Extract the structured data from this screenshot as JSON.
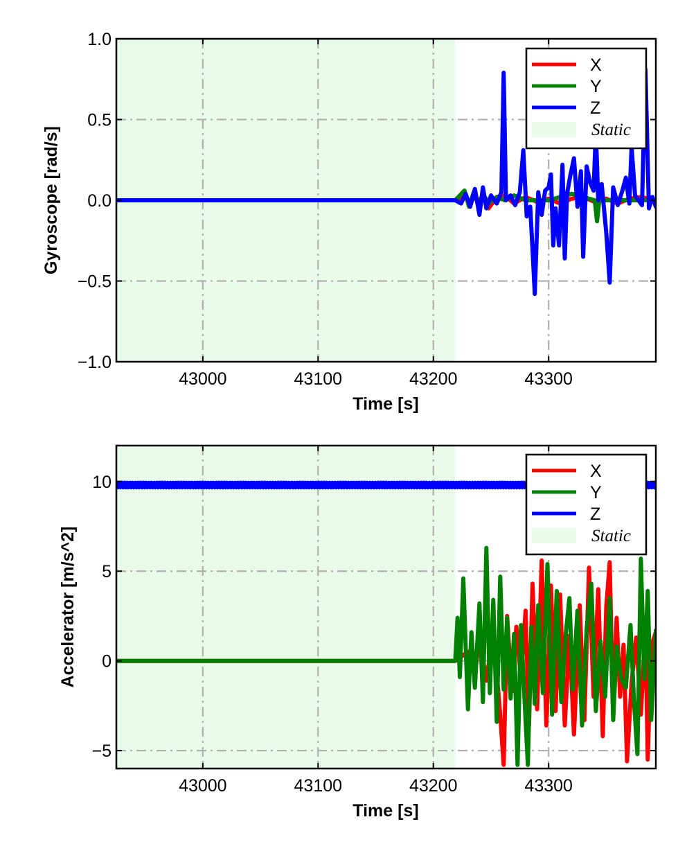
{
  "colors": {
    "x": "#ff0000",
    "y": "#008000",
    "z": "#0000ff",
    "static_fill": "#e8fbe8",
    "grid": "#b0b0b0"
  },
  "chart_data": [
    {
      "type": "line",
      "xlabel": "Time [s]",
      "ylabel": "Gyroscope [rad/s]",
      "xlim": [
        42925,
        43393
      ],
      "ylim": [
        -1.0,
        1.0
      ],
      "xticks": [
        43000,
        43100,
        43200,
        43300
      ],
      "yticks": [
        -1.0,
        -0.5,
        0.0,
        0.5,
        1.0
      ],
      "ytick_labels": [
        "−1.0",
        "−0.5",
        "0.0",
        "0.5",
        "1.0"
      ],
      "grid": true,
      "legend": "top-right",
      "static_region": {
        "label": "Static",
        "x": [
          42925,
          43219
        ]
      },
      "series": [
        {
          "name": "X",
          "x": [
            42925,
            43219,
            43228,
            43232,
            43236,
            43240,
            43244,
            43248,
            43255,
            43262,
            43270,
            43280,
            43290,
            43300,
            43310,
            43320,
            43330,
            43340,
            43350,
            43360,
            43370,
            43380,
            43393
          ],
          "y": [
            0.0,
            0.0,
            0.02,
            -0.03,
            0.04,
            -0.02,
            0.03,
            -0.05,
            0.02,
            0.03,
            -0.02,
            0.02,
            -0.01,
            0.01,
            -0.02,
            0.01,
            0.02,
            -0.01,
            0.01,
            -0.02,
            0.01,
            0.02,
            0.0
          ]
        },
        {
          "name": "Y",
          "x": [
            42925,
            43219,
            43227,
            43231,
            43235,
            43239,
            43243,
            43248,
            43255,
            43262,
            43270,
            43280,
            43300,
            43320,
            43340,
            43342,
            43344,
            43350,
            43370,
            43393
          ],
          "y": [
            0.0,
            0.0,
            0.06,
            -0.04,
            0.05,
            -0.03,
            0.04,
            -0.02,
            0.02,
            0.0,
            0.03,
            0.0,
            0.0,
            0.04,
            0.0,
            -0.13,
            0.0,
            0.0,
            0.0,
            0.0
          ]
        },
        {
          "name": "Z",
          "x": [
            42925,
            43219,
            43224,
            43228,
            43232,
            43236,
            43240,
            43243,
            43246,
            43250,
            43255,
            43259,
            43261,
            43263,
            43267,
            43271,
            43275,
            43278,
            43281,
            43284,
            43286,
            43288,
            43291,
            43294,
            43297,
            43300,
            43302,
            43304,
            43306,
            43309,
            43312,
            43314,
            43316,
            43319,
            43322,
            43325,
            43328,
            43330,
            43333,
            43336,
            43339,
            43341,
            43343,
            43346,
            43350,
            43353,
            43356,
            43360,
            43364,
            43367,
            43370,
            43372,
            43375,
            43378,
            43381,
            43384,
            43387,
            43390,
            43393
          ],
          "y": [
            0.0,
            0.0,
            -0.02,
            0.04,
            -0.04,
            0.07,
            -0.09,
            0.08,
            -0.05,
            0.03,
            -0.02,
            0.05,
            0.79,
            0.0,
            0.03,
            -0.03,
            0.05,
            0.31,
            -0.1,
            -0.04,
            -0.3,
            -0.58,
            0.05,
            -0.09,
            0.06,
            0.08,
            0.16,
            -0.28,
            -0.05,
            -0.28,
            0.22,
            -0.36,
            0.04,
            0.16,
            0.26,
            -0.04,
            0.18,
            -0.35,
            0.21,
            0.11,
            0.06,
            0.43,
            0.0,
            0.1,
            -0.2,
            -0.51,
            0.08,
            -0.03,
            0.06,
            0.14,
            -0.02,
            0.33,
            0.03,
            0.0,
            -0.03,
            0.81,
            -0.05,
            0.02,
            -0.04
          ]
        }
      ]
    },
    {
      "type": "line",
      "xlabel": "Time [s]",
      "ylabel": "Accelerator [m/s^2]",
      "xlim": [
        42925,
        43393
      ],
      "ylim": [
        -6.0,
        12.0
      ],
      "xticks": [
        43000,
        43100,
        43200,
        43300
      ],
      "yticks": [
        -5,
        0,
        5,
        10
      ],
      "ytick_labels": [
        "−5",
        "0",
        "5",
        "10"
      ],
      "grid": true,
      "legend": "top-right",
      "static_region": {
        "label": "Static",
        "x": [
          42925,
          43219
        ]
      },
      "series": [
        {
          "name": "X",
          "x": [
            42925,
            43219,
            43230,
            43236,
            43240,
            43246,
            43252,
            43258,
            43261,
            43264,
            43268,
            43272,
            43276,
            43280,
            43283,
            43286,
            43290,
            43294,
            43298,
            43302,
            43306,
            43310,
            43314,
            43318,
            43322,
            43327,
            43331,
            43335,
            43339,
            43343,
            43347,
            43350,
            43353,
            43356,
            43359,
            43362,
            43365,
            43368,
            43372,
            43376,
            43380,
            43384,
            43386,
            43389,
            43393
          ],
          "y": [
            0.0,
            0.0,
            0.5,
            -0.8,
            1.3,
            -1.1,
            1.6,
            -3.0,
            -5.8,
            2.5,
            -1.7,
            1.9,
            -1.0,
            2.8,
            -3.6,
            4.3,
            -2.7,
            5.6,
            -3.6,
            4.2,
            -2.8,
            3.7,
            -3.6,
            1.4,
            -4.1,
            3.1,
            -3.3,
            5.2,
            -2.0,
            4.0,
            -4.2,
            3.0,
            5.5,
            -3.1,
            2.4,
            -2.0,
            0.9,
            -5.6,
            -1.2,
            1.3,
            -3.0,
            1.9,
            -5.5,
            0.8,
            1.6
          ]
        },
        {
          "name": "Y",
          "x": [
            42925,
            43219,
            43221,
            43223,
            43226,
            43230,
            43233,
            43236,
            43240,
            43243,
            43246,
            43249,
            43252,
            43255,
            43258,
            43261,
            43264,
            43267,
            43270,
            43273,
            43276,
            43279,
            43282,
            43285,
            43288,
            43291,
            43295,
            43299,
            43303,
            43307,
            43311,
            43315,
            43318,
            43321,
            43325,
            43329,
            43333,
            43337,
            43341,
            43345,
            43349,
            43353,
            43356,
            43359,
            43363,
            43367,
            43371,
            43374,
            43377,
            43380,
            43383,
            43386,
            43389,
            43393
          ],
          "y": [
            0.0,
            0.0,
            2.4,
            -0.9,
            4.6,
            -2.7,
            1.6,
            -1.5,
            3.2,
            -2.3,
            6.3,
            -1.8,
            3.4,
            -3.4,
            4.7,
            -1.6,
            2.4,
            -2.1,
            1.5,
            -5.8,
            2.0,
            -2.0,
            -5.8,
            1.9,
            -2.4,
            3.1,
            -1.8,
            5.4,
            -3.0,
            3.9,
            -2.3,
            1.6,
            3.5,
            -1.6,
            2.8,
            -3.6,
            1.8,
            4.3,
            -2.8,
            1.1,
            -2.0,
            3.5,
            -3.3,
            0.8,
            -1.0,
            -1.5,
            2.0,
            -2.2,
            -5.2,
            5.7,
            -1.0,
            3.9,
            -3.3,
            1.7
          ]
        },
        {
          "name": "Z",
          "x": [
            42925,
            43393
          ],
          "y": [
            9.8,
            9.8
          ],
          "noise": 0.15
        }
      ]
    }
  ]
}
